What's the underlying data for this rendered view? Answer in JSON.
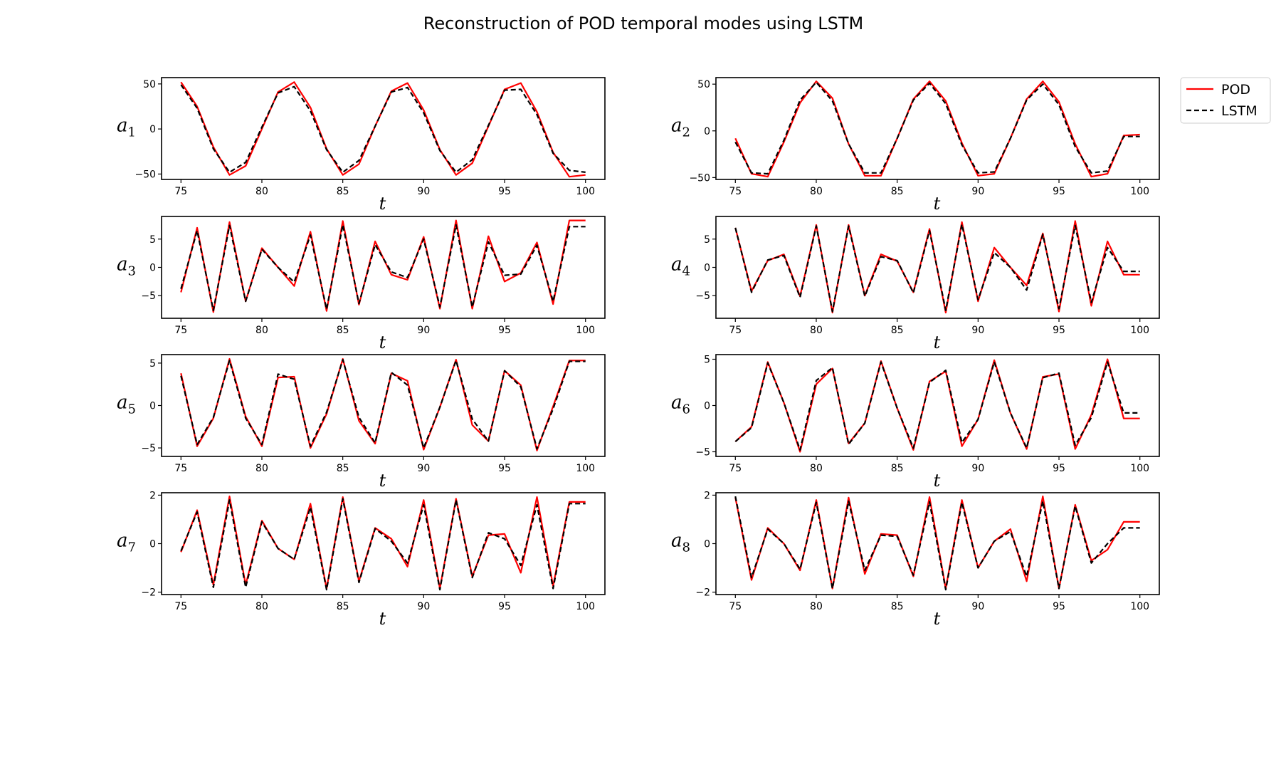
{
  "figure": {
    "title": "Reconstruction of POD temporal modes using LSTM"
  },
  "legend": {
    "entries": [
      {
        "label": "POD",
        "color": "#ff0000",
        "style": "solid"
      },
      {
        "label": "LSTM",
        "color": "#000000",
        "style": "dashed"
      }
    ],
    "placement": "top-right, outside axes"
  },
  "chart_data": [
    {
      "type": "line",
      "ylabel_base": "a",
      "ylabel_sub": "1",
      "xlabel": "t",
      "xlim": [
        73.8,
        101.2
      ],
      "ylim": [
        -56,
        57
      ],
      "xticks": [
        75,
        80,
        85,
        90,
        95,
        100
      ],
      "yticks": [
        -50,
        0,
        50
      ],
      "grid": false,
      "x": [
        75,
        76,
        77,
        78,
        79,
        80,
        81,
        82,
        83,
        84,
        85,
        86,
        87,
        88,
        89,
        90,
        91,
        92,
        93,
        94,
        95,
        96,
        97,
        98,
        99,
        100
      ],
      "series": [
        {
          "name": "POD",
          "values": [
            52,
            25,
            -20,
            -51,
            -41,
            0,
            41,
            52,
            24,
            -22,
            -51,
            -39,
            3,
            42,
            51,
            21,
            -23,
            -51,
            -38,
            3,
            44,
            51,
            19,
            -26,
            -53,
            -51
          ]
        },
        {
          "name": "LSTM",
          "values": [
            49,
            23,
            -22,
            -48,
            -37,
            2,
            40,
            47,
            20,
            -23,
            -48,
            -35,
            3,
            41,
            46,
            18,
            -24,
            -48,
            -34,
            4,
            43,
            44,
            16,
            -27,
            -46,
            -48
          ]
        }
      ]
    },
    {
      "type": "line",
      "ylabel_base": "a",
      "ylabel_sub": "2",
      "xlabel": "t",
      "xlim": [
        73.8,
        101.2
      ],
      "ylim": [
        -52,
        57
      ],
      "xticks": [
        75,
        80,
        85,
        90,
        95,
        100
      ],
      "yticks": [
        -50,
        0,
        50
      ],
      "grid": false,
      "x": [
        75,
        76,
        77,
        78,
        79,
        80,
        81,
        82,
        83,
        84,
        85,
        86,
        87,
        88,
        89,
        90,
        91,
        92,
        93,
        94,
        95,
        96,
        97,
        98,
        99,
        100
      ],
      "series": [
        {
          "name": "POD",
          "values": [
            -8,
            -46,
            -49,
            -12,
            30,
            53,
            35,
            -14,
            -48,
            -48,
            -8,
            34,
            53,
            32,
            -13,
            -48,
            -46,
            -8,
            34,
            53,
            31,
            -14,
            -49,
            -46,
            -5,
            -4
          ]
        },
        {
          "name": "LSTM",
          "values": [
            -12,
            -45,
            -46,
            -10,
            33,
            52,
            32,
            -14,
            -45,
            -45,
            -8,
            33,
            51,
            29,
            -15,
            -45,
            -44,
            -8,
            33,
            50,
            28,
            -17,
            -45,
            -43,
            -6,
            -6
          ]
        }
      ]
    },
    {
      "type": "line",
      "ylabel_base": "a",
      "ylabel_sub": "3",
      "xlabel": "t",
      "xlim": [
        73.8,
        101.2
      ],
      "ylim": [
        -9,
        9
      ],
      "xticks": [
        75,
        80,
        85,
        90,
        95,
        100
      ],
      "yticks": [
        -5,
        0,
        5
      ],
      "grid": false,
      "x": [
        75,
        76,
        77,
        78,
        79,
        80,
        81,
        82,
        83,
        84,
        85,
        86,
        87,
        88,
        89,
        90,
        91,
        92,
        93,
        94,
        95,
        96,
        97,
        98,
        99,
        100
      ],
      "series": [
        {
          "name": "POD",
          "values": [
            -4.4,
            7,
            -7.9,
            8,
            -6,
            3.4,
            0,
            -3.3,
            6.3,
            -7.7,
            8.2,
            -6.6,
            4.6,
            -1.3,
            -2.2,
            5.4,
            -7.3,
            8.3,
            -7.3,
            5.5,
            -2.5,
            -1,
            4.4,
            -6.5,
            8.3,
            8.3
          ]
        },
        {
          "name": "LSTM",
          "values": [
            -3.8,
            6.5,
            -7.6,
            7.4,
            -6,
            3.2,
            0,
            -2.6,
            5.7,
            -7.4,
            7.5,
            -6.4,
            4,
            -0.8,
            -1.8,
            5,
            -7,
            7.5,
            -7,
            4.5,
            -1.4,
            -1.2,
            3.9,
            -6,
            7.2,
            7.2
          ]
        }
      ]
    },
    {
      "type": "line",
      "ylabel_base": "a",
      "ylabel_sub": "4",
      "xlabel": "t",
      "xlim": [
        73.8,
        101.2
      ],
      "ylim": [
        -9,
        9
      ],
      "xticks": [
        75,
        80,
        85,
        90,
        95,
        100
      ],
      "yticks": [
        -5,
        0,
        5
      ],
      "grid": false,
      "x": [
        75,
        76,
        77,
        78,
        79,
        80,
        81,
        82,
        83,
        84,
        85,
        86,
        87,
        88,
        89,
        90,
        91,
        92,
        93,
        94,
        95,
        96,
        97,
        98,
        99,
        100
      ],
      "series": [
        {
          "name": "POD",
          "values": [
            7,
            -4.2,
            1.2,
            2.3,
            -5.1,
            7.5,
            -8,
            7.5,
            -5,
            2.3,
            1.1,
            -4.4,
            6.8,
            -8,
            8,
            -6,
            3.5,
            0,
            -3.2,
            6,
            -7.8,
            8.2,
            -6.8,
            4.6,
            -1.3,
            -1.3
          ]
        },
        {
          "name": "LSTM",
          "values": [
            7,
            -4.4,
            1.3,
            2.1,
            -5.3,
            7.3,
            -7.8,
            7.3,
            -5.1,
            1.9,
            1.2,
            -4.5,
            6.5,
            -7.6,
            7.6,
            -5.7,
            2.6,
            0,
            -4,
            5.8,
            -7.3,
            7.4,
            -6.2,
            3.5,
            -0.7,
            -0.7
          ]
        }
      ]
    },
    {
      "type": "line",
      "ylabel_base": "a",
      "ylabel_sub": "5",
      "xlabel": "t",
      "xlim": [
        73.8,
        101.2
      ],
      "ylim": [
        -6,
        6
      ],
      "xticks": [
        75,
        80,
        85,
        90,
        95,
        100
      ],
      "yticks": [
        -5,
        0,
        5
      ],
      "grid": false,
      "x": [
        75,
        76,
        77,
        78,
        79,
        80,
        81,
        82,
        83,
        84,
        85,
        86,
        87,
        88,
        89,
        90,
        91,
        92,
        93,
        94,
        95,
        96,
        97,
        98,
        99,
        100
      ],
      "series": [
        {
          "name": "POD",
          "values": [
            3.8,
            -4.8,
            -1.5,
            5.5,
            -1.3,
            -4.8,
            3.3,
            3.4,
            -5,
            -1,
            5.5,
            -1.8,
            -4.5,
            3.8,
            2.9,
            -5.2,
            -0.2,
            5.4,
            -2.3,
            -4.2,
            4.1,
            2.4,
            -5.3,
            -0.1,
            5.3,
            5.3
          ]
        },
        {
          "name": "LSTM",
          "values": [
            3.5,
            -4.6,
            -1.4,
            5.3,
            -1.5,
            -4.6,
            3.7,
            3.1,
            -4.8,
            -0.8,
            5.4,
            -1.4,
            -4.4,
            3.9,
            2.4,
            -5,
            -0.2,
            5.3,
            -1.6,
            -4.2,
            4.1,
            2.2,
            -5.1,
            -0.4,
            5.2,
            5.2
          ]
        }
      ]
    },
    {
      "type": "line",
      "ylabel_base": "a",
      "ylabel_sub": "6",
      "xlabel": "t",
      "xlim": [
        73.8,
        101.2
      ],
      "ylim": [
        -5.5,
        5.5
      ],
      "xticks": [
        75,
        80,
        85,
        90,
        95,
        100
      ],
      "yticks": [
        -5,
        0,
        5
      ],
      "grid": false,
      "x": [
        75,
        76,
        77,
        78,
        79,
        80,
        81,
        82,
        83,
        84,
        85,
        86,
        87,
        88,
        89,
        90,
        91,
        92,
        93,
        94,
        95,
        96,
        97,
        98,
        99,
        100
      ],
      "series": [
        {
          "name": "POD",
          "values": [
            -3.9,
            -2.3,
            4.7,
            0.3,
            -5,
            2.3,
            4,
            -4.1,
            -1.9,
            4.8,
            -0.3,
            -4.8,
            2.6,
            3.7,
            -4.4,
            -1.5,
            4.9,
            -0.8,
            -4.7,
            3.1,
            3.4,
            -4.7,
            -1,
            5,
            -1.4,
            -1.4
          ]
        },
        {
          "name": "LSTM",
          "values": [
            -3.9,
            -2.4,
            4.6,
            0.3,
            -4.8,
            2.7,
            4.1,
            -4.2,
            -1.9,
            4.7,
            -0.3,
            -4.6,
            2.5,
            3.8,
            -4,
            -1.5,
            4.7,
            -0.8,
            -4.6,
            3,
            3.5,
            -4.3,
            -1.3,
            4.7,
            -0.8,
            -0.8
          ]
        }
      ]
    },
    {
      "type": "line",
      "ylabel_base": "a",
      "ylabel_sub": "7",
      "xlabel": "t",
      "xlim": [
        73.8,
        101.2
      ],
      "ylim": [
        -2.1,
        2.1
      ],
      "xticks": [
        75,
        80,
        85,
        90,
        95,
        100
      ],
      "yticks": [
        -2,
        0,
        2
      ],
      "grid": false,
      "x": [
        75,
        76,
        77,
        78,
        79,
        80,
        81,
        82,
        83,
        84,
        85,
        86,
        87,
        88,
        89,
        90,
        91,
        92,
        93,
        94,
        95,
        96,
        97,
        98,
        99,
        100
      ],
      "series": [
        {
          "name": "POD",
          "values": [
            -0.35,
            1.38,
            -1.7,
            1.95,
            -1.7,
            0.95,
            -0.2,
            -0.65,
            1.65,
            -1.85,
            1.92,
            -1.55,
            0.65,
            0.2,
            -0.95,
            1.8,
            -1.85,
            1.85,
            -1.35,
            0.35,
            0.4,
            -1.2,
            1.92,
            -1.75,
            1.72,
            1.72
          ]
        },
        {
          "name": "LSTM",
          "values": [
            -0.3,
            1.3,
            -1.8,
            1.8,
            -1.8,
            0.9,
            -0.2,
            -0.65,
            1.5,
            -1.9,
            1.85,
            -1.6,
            0.62,
            0.1,
            -0.8,
            1.6,
            -1.9,
            1.8,
            -1.4,
            0.45,
            0.2,
            -0.9,
            1.6,
            -1.85,
            1.65,
            1.65
          ]
        }
      ]
    },
    {
      "type": "line",
      "ylabel_base": "a",
      "ylabel_sub": "8",
      "xlabel": "t",
      "xlim": [
        73.8,
        101.2
      ],
      "ylim": [
        -2.1,
        2.1
      ],
      "xticks": [
        75,
        80,
        85,
        90,
        95,
        100
      ],
      "yticks": [
        -2,
        0,
        2
      ],
      "grid": false,
      "x": [
        75,
        76,
        77,
        78,
        79,
        80,
        81,
        82,
        83,
        84,
        85,
        86,
        87,
        88,
        89,
        90,
        91,
        92,
        93,
        94,
        95,
        96,
        97,
        98,
        99,
        100
      ],
      "series": [
        {
          "name": "POD",
          "values": [
            1.9,
            -1.5,
            0.65,
            0,
            -1.1,
            1.8,
            -1.85,
            1.9,
            -1.25,
            0.4,
            0.35,
            -1.35,
            1.92,
            -1.85,
            1.8,
            -1,
            0.1,
            0.6,
            -1.55,
            1.95,
            -1.85,
            1.6,
            -0.7,
            -0.25,
            0.9,
            0.9
          ]
        },
        {
          "name": "LSTM",
          "values": [
            1.95,
            -1.4,
            0.6,
            0,
            -1.05,
            1.7,
            -1.85,
            1.75,
            -1.1,
            0.35,
            0.3,
            -1.3,
            1.72,
            -1.9,
            1.7,
            -1,
            0.1,
            0.5,
            -1.35,
            1.75,
            -1.85,
            1.55,
            -0.8,
            0,
            0.65,
            0.65
          ]
        }
      ]
    }
  ]
}
